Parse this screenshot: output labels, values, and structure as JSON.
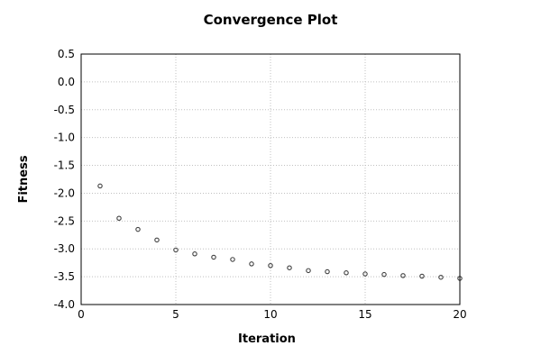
{
  "title": "Convergence Plot",
  "colors": {
    "background": "#ffffff",
    "frame": "#000000",
    "grid": "#c0c0c0",
    "point_stroke": "#404040",
    "text": "#000000"
  },
  "chart_data": {
    "type": "scatter",
    "title": "Convergence Plot",
    "xlabel": "Iteration",
    "ylabel": "Fitness",
    "xlim": [
      0,
      20
    ],
    "ylim": [
      -4.0,
      0.5
    ],
    "grid": true,
    "legend": "none",
    "marker": "open-circle",
    "x_ticks": [
      0,
      5,
      10,
      15,
      20
    ],
    "x_tick_labels": [
      "0",
      "5",
      "10",
      "15",
      "20"
    ],
    "y_ticks": [
      0.5,
      0.0,
      -0.5,
      -1.0,
      -1.5,
      -2.0,
      -2.5,
      -3.0,
      -3.5,
      -4.0
    ],
    "y_tick_labels": [
      "0.5",
      "0.0",
      "-0.5",
      "-1.0",
      "-1.5",
      "-2.0",
      "-2.5",
      "-3.0",
      "-3.5",
      "-4.0"
    ],
    "x": [
      1,
      2,
      3,
      4,
      5,
      6,
      7,
      8,
      9,
      10,
      11,
      12,
      13,
      14,
      15,
      16,
      17,
      18,
      19,
      20
    ],
    "y": [
      -1.87,
      -2.45,
      -2.65,
      -2.84,
      -3.02,
      -3.09,
      -3.15,
      -3.19,
      -3.27,
      -3.3,
      -3.34,
      -3.39,
      -3.41,
      -3.43,
      -3.45,
      -3.46,
      -3.48,
      -3.49,
      -3.51,
      -3.53
    ]
  }
}
